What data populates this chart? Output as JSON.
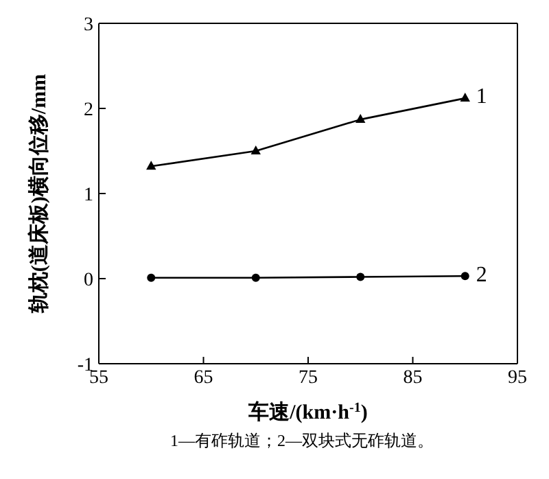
{
  "chart_data": {
    "type": "line",
    "xlabel": "车速/(km·h$^{-1}$)",
    "ylabel": "轨枕(道床板)横向位移/mm",
    "x": [
      60,
      70,
      80,
      90
    ],
    "series": [
      {
        "name": "1",
        "color": "#000000",
        "marker": "triangle",
        "values": [
          1.32,
          1.5,
          1.87,
          2.12
        ]
      },
      {
        "name": "2",
        "color": "#000000",
        "marker": "circle",
        "values": [
          0.01,
          0.01,
          0.02,
          0.03
        ]
      }
    ],
    "xlim": [
      55,
      95
    ],
    "xticks": [
      55,
      65,
      75,
      85,
      95
    ],
    "ylim": [
      -1,
      3
    ],
    "yticks": [
      -1,
      0,
      1,
      2,
      3
    ],
    "grid": false,
    "legend": false,
    "line_style": "solid",
    "annotations": [
      "1—有砟轨道；2—双块式无砟轨道。"
    ]
  }
}
